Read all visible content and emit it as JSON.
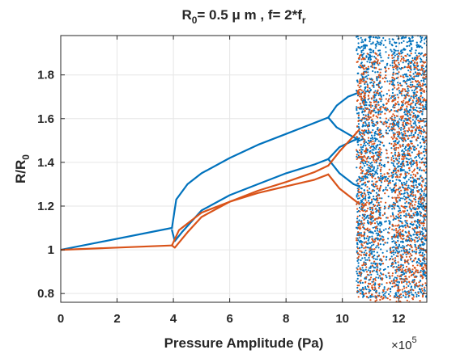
{
  "chart_data": {
    "type": "scatter",
    "title": {
      "main": "R",
      "main_sub": "0",
      "rest": "= 0.5 μ m , f= 2*f",
      "rest_sub": "r"
    },
    "xlabel": "Pressure Amplitude (Pa)",
    "ylabel": {
      "main": "R/R",
      "sub": "0"
    },
    "x_multiplier": {
      "base": "×10",
      "exp": "5"
    },
    "xlim": [
      0,
      13
    ],
    "ylim": [
      0.76,
      1.98
    ],
    "xticks": [
      0,
      2,
      4,
      6,
      8,
      10,
      12
    ],
    "yticks": [
      0.8,
      1.0,
      1.2,
      1.4,
      1.6,
      1.8
    ],
    "xtick_labels": [
      "0",
      "2",
      "4",
      "6",
      "8",
      "10",
      "12"
    ],
    "ytick_labels": [
      "0.8",
      "1",
      "1.2",
      "1.4",
      "1.6",
      "1.8"
    ],
    "grid": true,
    "colors": {
      "blue": "#0072BD",
      "orange": "#D95319",
      "axis": "#262626",
      "grid": "#e6e6e6"
    },
    "series": [
      {
        "color": "blue",
        "branches": [
          {
            "x": [
              0,
              3.95
            ],
            "y": [
              1.0,
              1.1
            ]
          },
          {
            "x": [
              3.95,
              4.1,
              4.5,
              5,
              6,
              7,
              8,
              9,
              9.5
            ],
            "y": [
              1.1,
              1.23,
              1.3,
              1.35,
              1.42,
              1.48,
              1.53,
              1.58,
              1.605
            ]
          },
          {
            "x": [
              3.95,
              4.05,
              4.3,
              5,
              6,
              7,
              8,
              9,
              9.5
            ],
            "y": [
              1.09,
              1.04,
              1.08,
              1.18,
              1.25,
              1.3,
              1.35,
              1.39,
              1.415
            ]
          },
          {
            "x": [
              9.5,
              9.8,
              10.2,
              10.6
            ],
            "y": [
              1.605,
              1.66,
              1.7,
              1.72
            ]
          },
          {
            "x": [
              9.5,
              9.8,
              10.2,
              10.6
            ],
            "y": [
              1.605,
              1.56,
              1.53,
              1.5
            ]
          },
          {
            "x": [
              9.5,
              9.9,
              10.4,
              10.6
            ],
            "y": [
              1.415,
              1.47,
              1.5,
              1.51
            ]
          },
          {
            "x": [
              9.5,
              9.9,
              10.4,
              10.6
            ],
            "y": [
              1.415,
              1.35,
              1.3,
              1.29
            ]
          }
        ],
        "chaos": {
          "x_range": [
            10.5,
            13
          ],
          "y_range": [
            0.78,
            1.98
          ],
          "count": 2600
        }
      },
      {
        "color": "orange",
        "branches": [
          {
            "x": [
              0,
              3.95
            ],
            "y": [
              1.0,
              1.02
            ]
          },
          {
            "x": [
              3.95,
              4.2,
              5,
              6,
              7,
              8,
              9,
              9.5
            ],
            "y": [
              1.02,
              1.09,
              1.17,
              1.22,
              1.27,
              1.31,
              1.355,
              1.385
            ]
          },
          {
            "x": [
              3.95,
              4.05,
              4.5,
              5,
              6,
              7,
              8,
              9,
              9.5
            ],
            "y": [
              1.02,
              1.01,
              1.08,
              1.15,
              1.22,
              1.26,
              1.29,
              1.32,
              1.345
            ]
          },
          {
            "x": [
              9.5,
              9.9,
              10.4,
              10.6
            ],
            "y": [
              1.385,
              1.45,
              1.52,
              1.55
            ]
          },
          {
            "x": [
              9.5,
              9.9,
              10.4,
              10.6
            ],
            "y": [
              1.345,
              1.28,
              1.23,
              1.21
            ]
          }
        ],
        "chaos": {
          "x_range": [
            10.5,
            13
          ],
          "y_range": [
            0.76,
            1.9
          ],
          "count": 1500
        }
      }
    ]
  }
}
